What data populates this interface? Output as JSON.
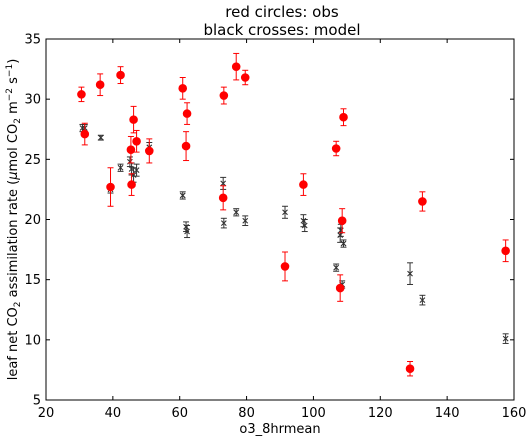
{
  "chart_data": {
    "type": "scatter",
    "title_lines": [
      "red circles: obs",
      "black crosses: model"
    ],
    "xlabel": "o3_8hrmean",
    "ylabel": {
      "prefix": "leaf net CO",
      "sub1": "2",
      "mid": " assimilation rate  (",
      "mu": "μ",
      "unit_a": "mol CO",
      "sub2": "2",
      "unit_b": " m",
      "sup1": "−2",
      "unit_c": " s",
      "sup2": "−1",
      "suffix": ")"
    },
    "xlim": [
      20,
      160
    ],
    "ylim": [
      5,
      35
    ],
    "x_ticks": [
      20,
      40,
      60,
      80,
      100,
      120,
      140,
      160
    ],
    "y_ticks": [
      5,
      10,
      15,
      20,
      25,
      30,
      35
    ],
    "grid": false,
    "series": [
      {
        "marker": "circle",
        "color": "#ff0000",
        "points": [
          {
            "x": 30.6,
            "y": 30.4,
            "err": 0.6
          },
          {
            "x": 31.6,
            "y": 27.1,
            "err": 0.9
          },
          {
            "x": 36.2,
            "y": 31.2,
            "err": 0.9
          },
          {
            "x": 39.3,
            "y": 22.7,
            "err": 1.6
          },
          {
            "x": 42.3,
            "y": 32.0,
            "err": 0.7
          },
          {
            "x": 45.4,
            "y": 25.8,
            "err": 1.1
          },
          {
            "x": 45.6,
            "y": 22.9,
            "err": 0.9
          },
          {
            "x": 46.2,
            "y": 28.3,
            "err": 1.1
          },
          {
            "x": 47.1,
            "y": 26.5,
            "err": 0.9
          },
          {
            "x": 50.9,
            "y": 25.7,
            "err": 1.0
          },
          {
            "x": 60.9,
            "y": 30.9,
            "err": 0.9
          },
          {
            "x": 61.9,
            "y": 26.1,
            "err": 1.2
          },
          {
            "x": 62.2,
            "y": 28.8,
            "err": 0.9
          },
          {
            "x": 73.0,
            "y": 21.8,
            "err": 1.0
          },
          {
            "x": 73.2,
            "y": 30.3,
            "err": 0.7
          },
          {
            "x": 76.9,
            "y": 32.7,
            "err": 1.1
          },
          {
            "x": 79.6,
            "y": 31.8,
            "err": 0.6
          },
          {
            "x": 91.5,
            "y": 16.1,
            "err": 1.2
          },
          {
            "x": 97.0,
            "y": 22.9,
            "err": 0.9
          },
          {
            "x": 106.8,
            "y": 25.9,
            "err": 0.6
          },
          {
            "x": 108.0,
            "y": 14.3,
            "err": 1.1
          },
          {
            "x": 108.6,
            "y": 19.9,
            "err": 1.0
          },
          {
            "x": 109.0,
            "y": 28.5,
            "err": 0.7
          },
          {
            "x": 128.9,
            "y": 7.6,
            "err": 0.6
          },
          {
            "x": 132.6,
            "y": 21.5,
            "err": 0.8
          },
          {
            "x": 157.5,
            "y": 17.4,
            "err": 0.9
          }
        ]
      },
      {
        "marker": "x",
        "color": "#333333",
        "points": [
          {
            "x": 30.9,
            "y": 27.6,
            "err": 0.3
          },
          {
            "x": 31.6,
            "y": 27.6,
            "err": 0.3
          },
          {
            "x": 36.4,
            "y": 26.8,
            "err": 0.2
          },
          {
            "x": 39.3,
            "y": 22.5,
            "err": 0.3
          },
          {
            "x": 42.3,
            "y": 24.3,
            "err": 0.3
          },
          {
            "x": 45.1,
            "y": 24.8,
            "err": 0.4
          },
          {
            "x": 45.6,
            "y": 24.2,
            "err": 0.5
          },
          {
            "x": 46.2,
            "y": 23.7,
            "err": 0.6
          },
          {
            "x": 47.1,
            "y": 24.1,
            "err": 0.5
          },
          {
            "x": 50.9,
            "y": 26.0,
            "err": 0.4
          },
          {
            "x": 60.9,
            "y": 22.0,
            "err": 0.3
          },
          {
            "x": 61.9,
            "y": 19.4,
            "err": 0.4
          },
          {
            "x": 62.2,
            "y": 19.0,
            "err": 0.5
          },
          {
            "x": 73.0,
            "y": 23.0,
            "err": 0.5
          },
          {
            "x": 73.2,
            "y": 19.7,
            "err": 0.4
          },
          {
            "x": 76.9,
            "y": 20.6,
            "err": 0.3
          },
          {
            "x": 79.6,
            "y": 19.9,
            "err": 0.4
          },
          {
            "x": 91.5,
            "y": 20.6,
            "err": 0.5
          },
          {
            "x": 97.0,
            "y": 19.9,
            "err": 0.5
          },
          {
            "x": 97.4,
            "y": 19.5,
            "err": 0.5
          },
          {
            "x": 106.8,
            "y": 16.0,
            "err": 0.3
          },
          {
            "x": 108.0,
            "y": 18.7,
            "err": 0.6
          },
          {
            "x": 108.2,
            "y": 19.1,
            "err": 0.5
          },
          {
            "x": 108.6,
            "y": 14.6,
            "err": 0.3
          },
          {
            "x": 109.0,
            "y": 18.0,
            "err": 0.3
          },
          {
            "x": 128.9,
            "y": 15.5,
            "err": 0.9
          },
          {
            "x": 132.6,
            "y": 13.3,
            "err": 0.4
          },
          {
            "x": 157.5,
            "y": 10.1,
            "err": 0.4
          }
        ]
      }
    ]
  }
}
